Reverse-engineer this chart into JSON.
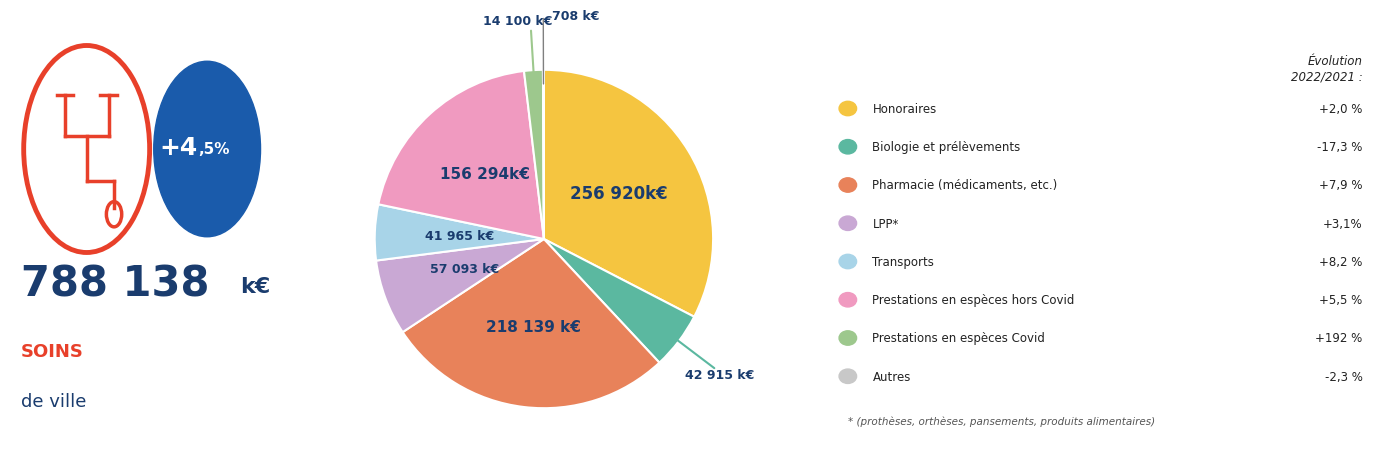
{
  "total": "788 138",
  "growth_big": "+4",
  "growth_small": ",5%",
  "slices": [
    {
      "label": "Honoraires",
      "value": 256920,
      "color": "#F5C540"
    },
    {
      "label": "Biologie et prélèvements",
      "value": 42915,
      "color": "#5BB8A0"
    },
    {
      "label": "Pharmacie (médicaments, etc.)",
      "value": 218139,
      "color": "#E8825A"
    },
    {
      "label": "LPP*",
      "value": 57093,
      "color": "#C9A8D4"
    },
    {
      "label": "Transports",
      "value": 41965,
      "color": "#A8D4E8"
    },
    {
      "label": "Prestations en espèces hors Covid",
      "value": 156294,
      "color": "#F09AC0"
    },
    {
      "label": "Prestations en espèces Covid",
      "value": 14100,
      "color": "#9DC88D"
    },
    {
      "label": "Autres",
      "value": 708,
      "color": "#C8C8C8"
    }
  ],
  "slice_labels": [
    "256 920k€",
    "42 915 k€",
    "218 139 k€",
    "57 093 k€",
    "41 965 k€",
    "156 294k€",
    "14 100 k€",
    "708 k€"
  ],
  "legend_evolutions": [
    "+2,0 %",
    "-17,3 %",
    "+7,9 %",
    "+3,1%",
    "+8,2 %",
    "+5,5 %",
    "+192 %",
    "-2,3 %"
  ],
  "footnote": "* (prothèses, orthèses, pansements, produits alimentaires)",
  "dark_blue": "#1a3c6e",
  "red_color": "#E8402A",
  "blue_circle_color": "#1A5BAB",
  "background": "#ffffff"
}
